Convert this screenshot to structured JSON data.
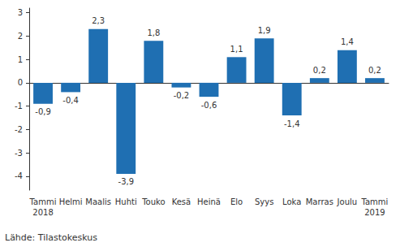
{
  "chart_data": {
    "type": "bar",
    "categories": [
      "Tammi\n2018",
      "Helmi",
      "Maalis",
      "Huhti",
      "Touko",
      "Kesä",
      "Heinä",
      "Elo",
      "Syys",
      "Loka",
      "Marras",
      "Joulu",
      "Tammi\n2019"
    ],
    "values": [
      -0.9,
      -0.4,
      2.3,
      -3.9,
      1.8,
      -0.2,
      -0.6,
      1.1,
      1.9,
      -1.4,
      0.2,
      1.4,
      0.2
    ],
    "value_labels": [
      "-0,9",
      "-0,4",
      "2,3",
      "-3,9",
      "1,8",
      "-0,2",
      "-0,6",
      "1,1",
      "1,9",
      "-1,4",
      "0,2",
      "1,4",
      "0,2"
    ],
    "color": "#1f6fb2",
    "ylim": [
      -4.6,
      3.2
    ],
    "yticks": [
      -4,
      -3,
      -2,
      -1,
      0,
      1,
      2,
      3
    ],
    "grid": false,
    "data_labels": true,
    "source": "Lähde: Tilastokeskus"
  }
}
